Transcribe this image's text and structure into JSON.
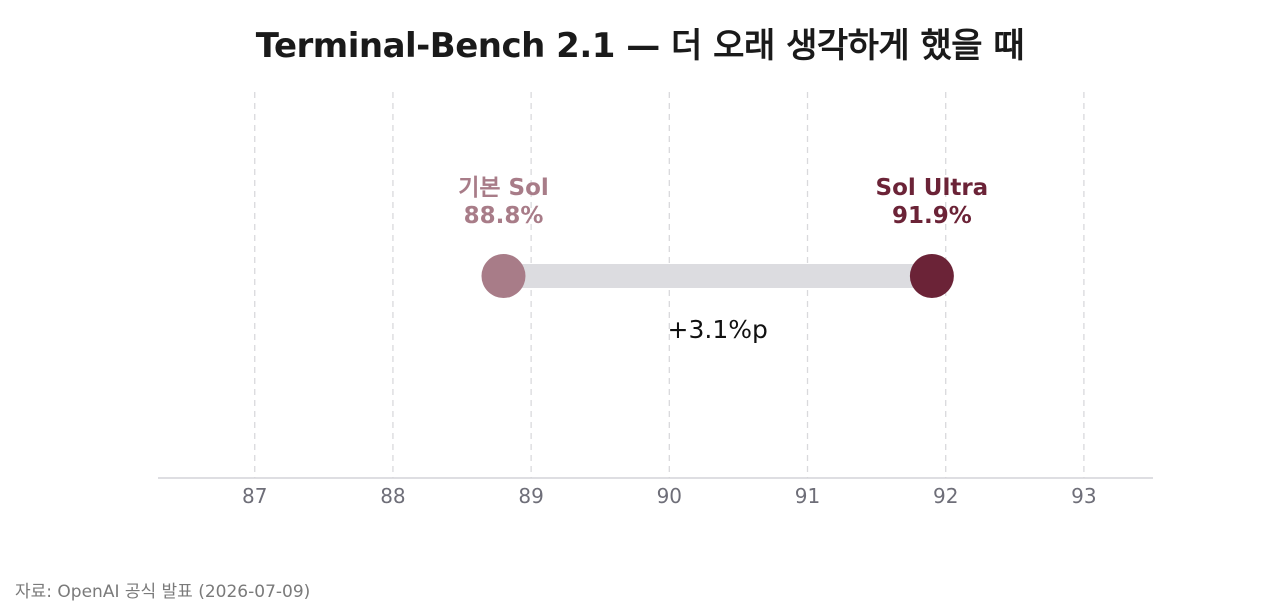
{
  "chart_data": {
    "type": "dumbbell",
    "title": "Terminal-Bench 2.1 — 더 오래 생각하게 했을 때",
    "xlim": [
      86.3,
      93.5
    ],
    "xticks": [
      87,
      88,
      89,
      90,
      91,
      92,
      93
    ],
    "grid": true,
    "points": [
      {
        "name": "기본 Sol",
        "value": 88.8,
        "label": "88.8%",
        "color": "#a87c88"
      },
      {
        "name": "Sol Ultra",
        "value": 91.9,
        "label": "91.9%",
        "color": "#6b2337"
      }
    ],
    "difference_label": "+3.1%p",
    "connector_color": "#dcdce0"
  },
  "footer": {
    "source": "자료: OpenAI 공식 발표 (2026-07-09)"
  }
}
